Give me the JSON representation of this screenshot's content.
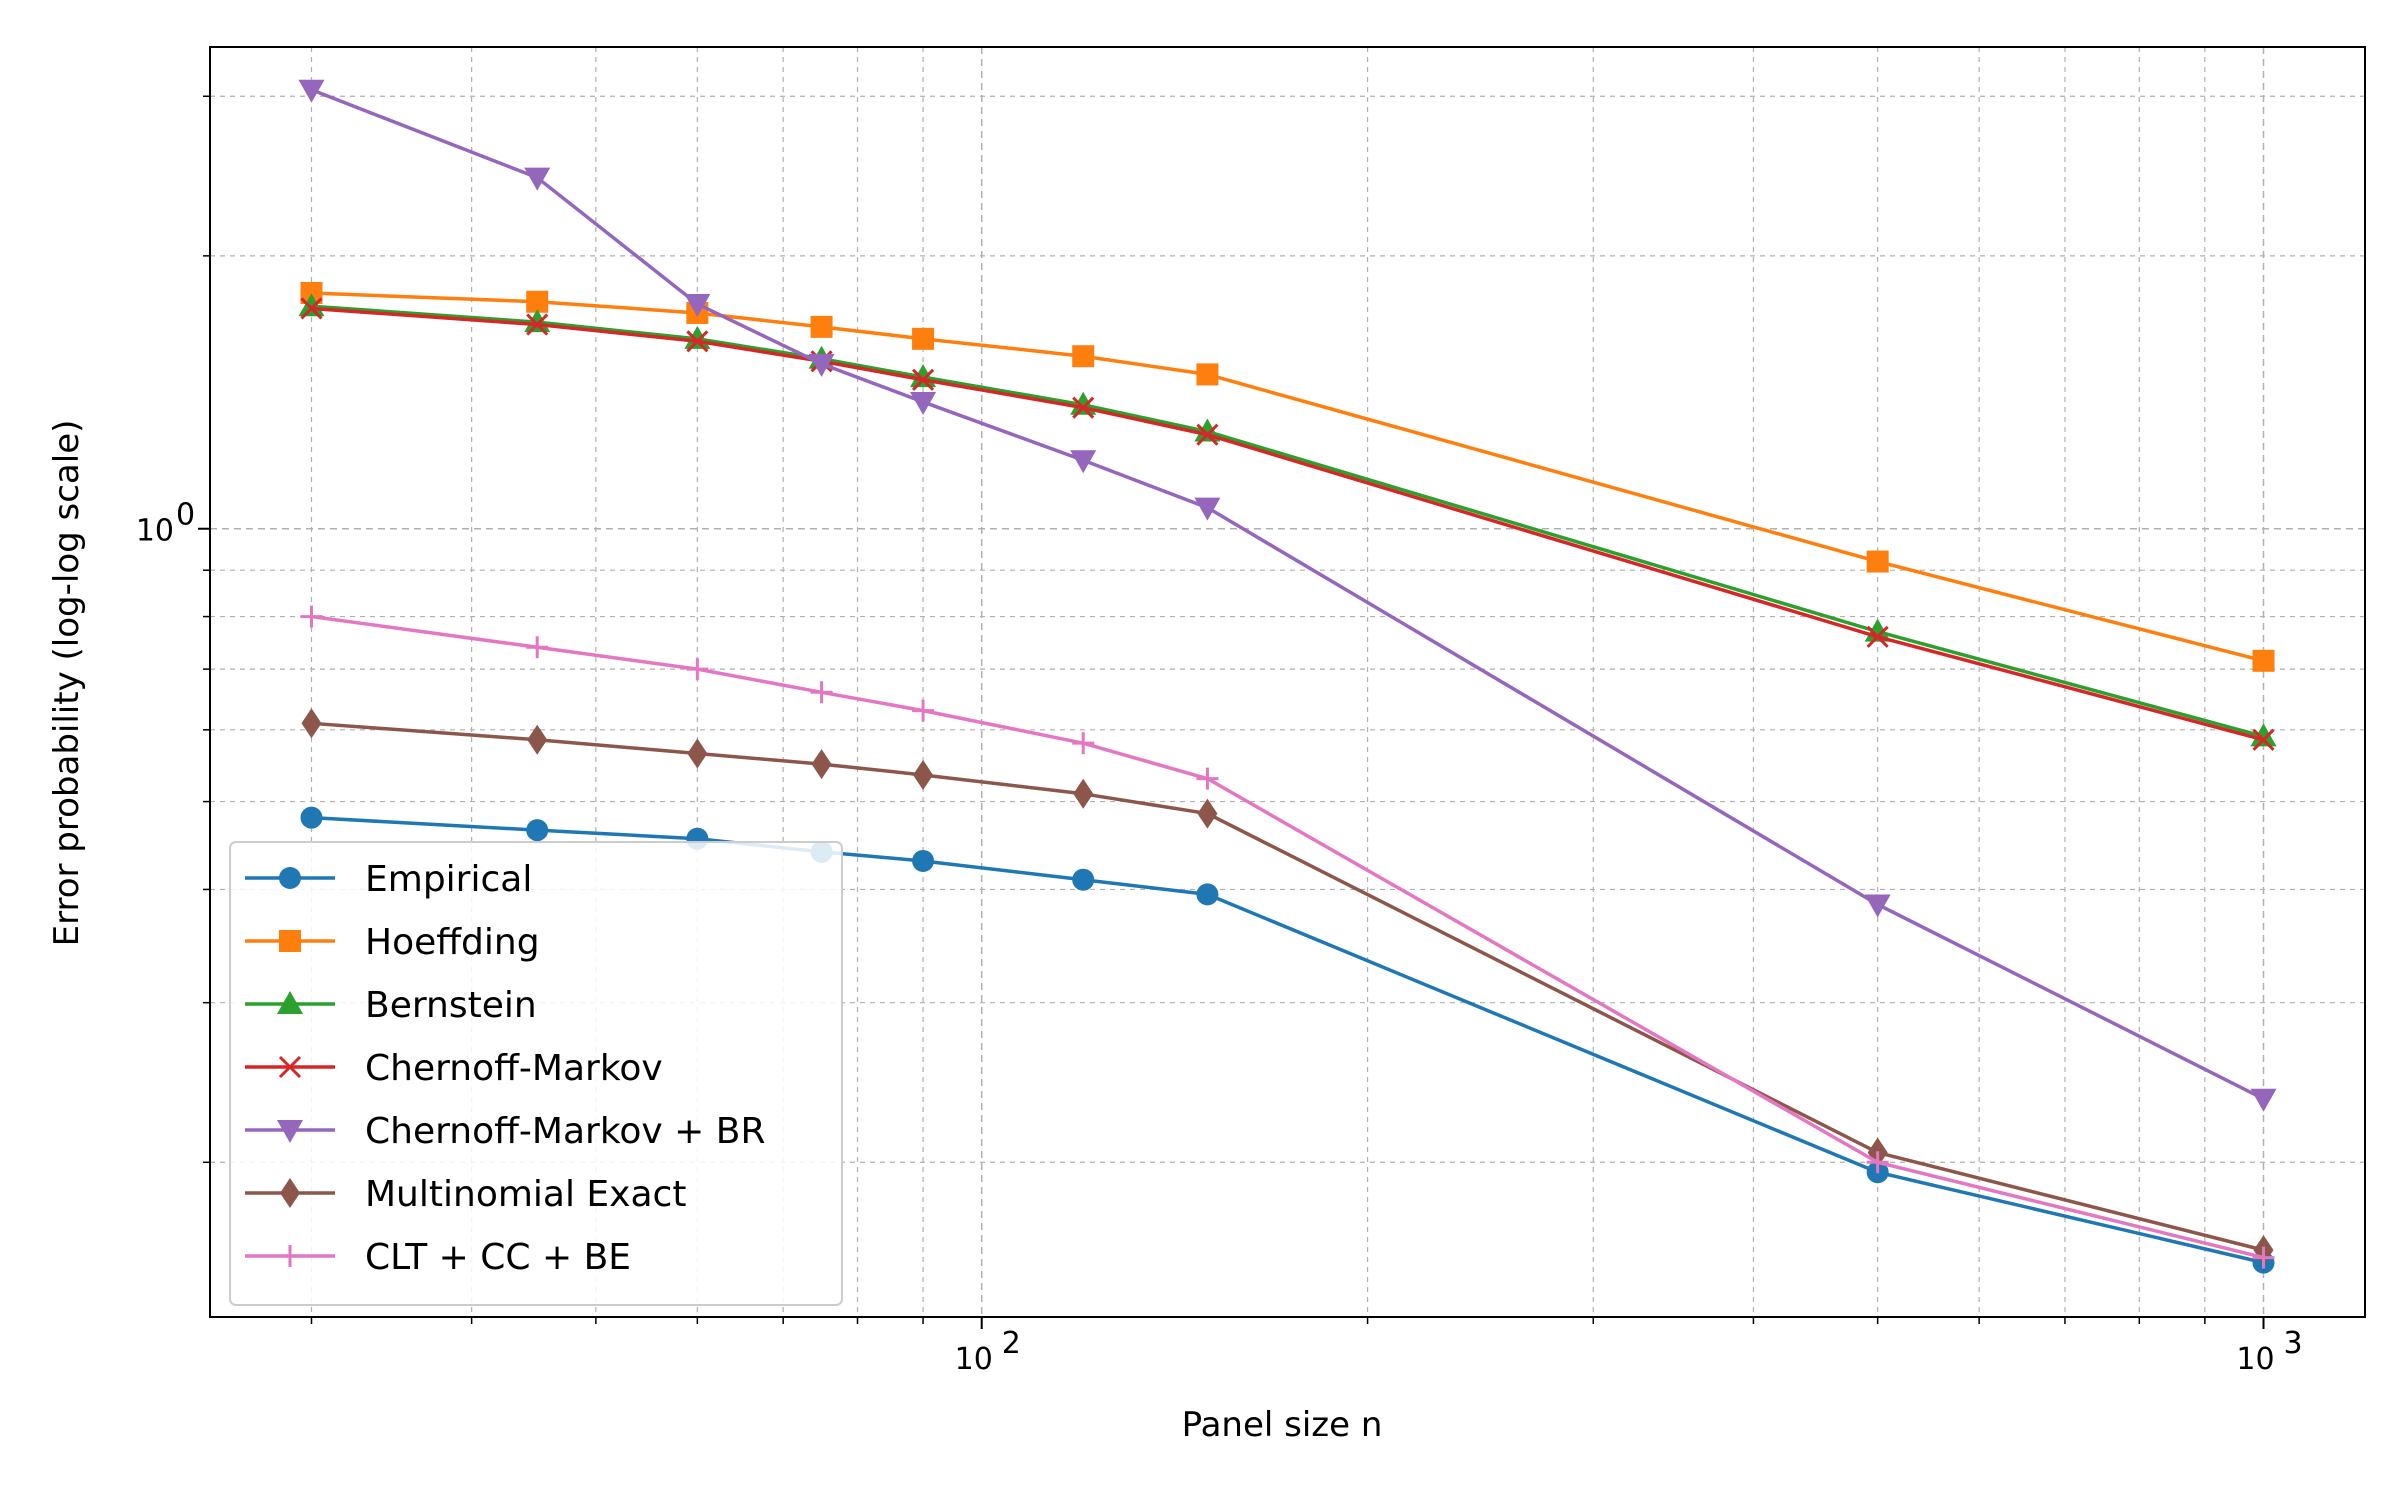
{
  "chart_data": {
    "type": "line",
    "title": "",
    "xlabel": "Panel size n",
    "ylabel": "Error probability (log-log scale)",
    "x_scale": "log",
    "y_scale": "log",
    "xlim": [
      25,
      1200
    ],
    "ylim": [
      0.135,
      3.4
    ],
    "grid": true,
    "legend_position": "lower-left",
    "x_major_ticks": [
      100,
      1000
    ],
    "x_tick_labels": [
      "10",
      "10"
    ],
    "x_tick_exponents": [
      "2",
      "3"
    ],
    "y_major_ticks": [
      1
    ],
    "y_tick_labels": [
      "10"
    ],
    "y_tick_exponents": [
      "0"
    ],
    "x_minor_ticks": [
      30,
      40,
      50,
      60,
      70,
      80,
      90,
      200,
      300,
      400,
      500,
      600,
      700,
      800,
      900
    ],
    "y_minor_ticks": [
      0.2,
      0.3,
      0.4,
      0.5,
      0.6,
      0.7,
      0.8,
      0.9,
      2,
      3
    ],
    "x": [
      30,
      45,
      60,
      75,
      90,
      120,
      150,
      500,
      1000
    ],
    "series": [
      {
        "name": "Empirical",
        "color": "#1f77b4",
        "marker": "circle",
        "values": [
          0.48,
          0.465,
          0.455,
          0.44,
          0.43,
          0.41,
          0.395,
          0.195,
          0.155
        ]
      },
      {
        "name": "Hoeffding",
        "color": "#ff7f0e",
        "marker": "square",
        "values": [
          1.82,
          1.78,
          1.73,
          1.67,
          1.62,
          1.55,
          1.48,
          0.92,
          0.715
        ]
      },
      {
        "name": "Bernstein",
        "color": "#2ca02c",
        "marker": "triangle-up",
        "values": [
          1.76,
          1.69,
          1.62,
          1.54,
          1.47,
          1.37,
          1.28,
          0.77,
          0.59
        ]
      },
      {
        "name": "Chernoff-Markov",
        "color": "#d62728",
        "marker": "x",
        "values": [
          1.75,
          1.68,
          1.61,
          1.53,
          1.46,
          1.36,
          1.27,
          0.76,
          0.585
        ]
      },
      {
        "name": "Chernoff-Markov + BR",
        "color": "#9467bd",
        "marker": "triangle-down",
        "values": [
          3.05,
          2.44,
          1.77,
          1.52,
          1.38,
          1.19,
          1.055,
          0.385,
          0.235
        ]
      },
      {
        "name": "Multinomial Exact",
        "color": "#8c564b",
        "marker": "diamond",
        "values": [
          0.61,
          0.585,
          0.565,
          0.55,
          0.535,
          0.51,
          0.485,
          0.205,
          0.16
        ]
      },
      {
        "name": "CLT + CC + BE",
        "color": "#e377c2",
        "marker": "plus",
        "values": [
          0.8,
          0.74,
          0.7,
          0.66,
          0.63,
          0.58,
          0.53,
          0.2,
          0.157
        ]
      }
    ]
  }
}
